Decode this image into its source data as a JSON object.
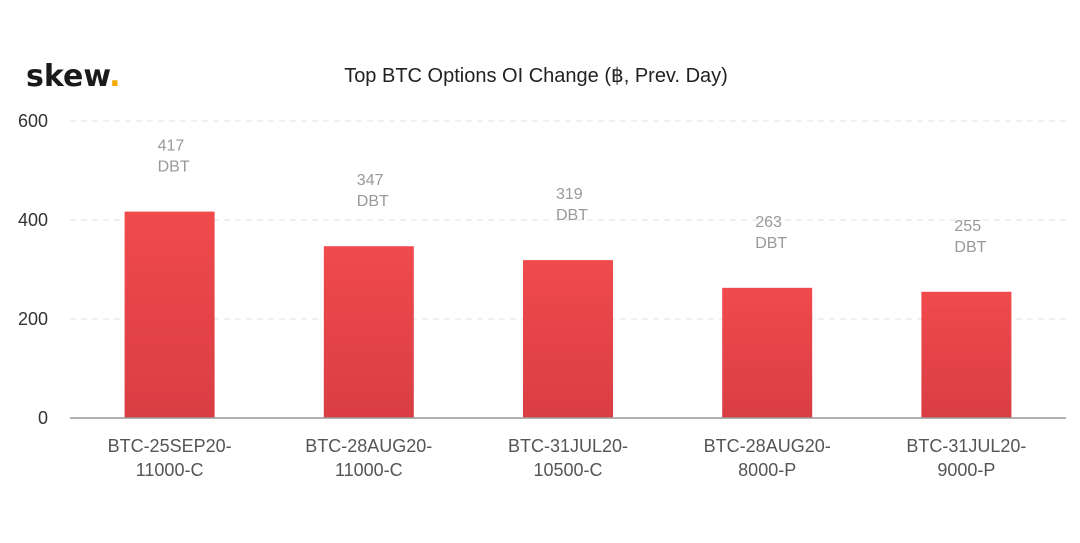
{
  "brand": {
    "logo_text": "skew",
    "logo_dot": ".",
    "dot_color": "#f2a900"
  },
  "chart_data": {
    "type": "bar",
    "title": "Top BTC Options OI Change (฿, Prev. Day)",
    "xlabel": "",
    "ylabel": "",
    "ylim": [
      0,
      600
    ],
    "yticks": [
      0,
      200,
      400,
      600
    ],
    "grid": true,
    "bar_color": "#e8474b",
    "categories": [
      [
        "BTC-25SEP20-",
        "11000-C"
      ],
      [
        "BTC-28AUG20-",
        "11000-C"
      ],
      [
        "BTC-31JUL20-",
        "10500-C"
      ],
      [
        "BTC-28AUG20-",
        "8000-P"
      ],
      [
        "BTC-31JUL20-",
        "9000-P"
      ]
    ],
    "values": [
      417,
      347,
      319,
      263,
      255
    ],
    "data_labels": [
      [
        "417",
        "DBT"
      ],
      [
        "347",
        "DBT"
      ],
      [
        "319",
        "DBT"
      ],
      [
        "263",
        "DBT"
      ],
      [
        "255",
        "DBT"
      ]
    ]
  }
}
